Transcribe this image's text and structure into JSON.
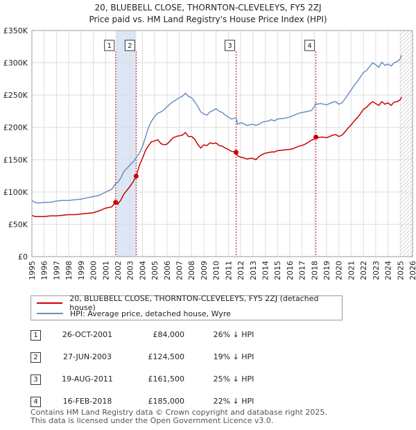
{
  "title": {
    "line1": "20, BLUEBELL CLOSE, THORNTON-CLEVELEYS, FY5 2ZJ",
    "line2": "Price paid vs. HM Land Registry's House Price Index (HPI)"
  },
  "colors": {
    "price_paid": "#cc0000",
    "hpi": "#6a8fc0",
    "sale_band": "#dce6f5",
    "grid": "#dddddd"
  },
  "chart_data": {
    "type": "line",
    "title": "Price paid vs. HM Land Registry's House Price Index (HPI)",
    "xlabel": "",
    "ylabel": "",
    "xlim": [
      1995,
      2026
    ],
    "ylim": [
      0,
      350000
    ],
    "x_ticks": [
      1995,
      1996,
      1997,
      1998,
      1999,
      2000,
      2001,
      2002,
      2003,
      2004,
      2005,
      2006,
      2007,
      2008,
      2009,
      2010,
      2011,
      2012,
      2013,
      2014,
      2015,
      2016,
      2017,
      2018,
      2019,
      2020,
      2021,
      2022,
      2023,
      2024,
      2025,
      2026
    ],
    "y_ticks": [
      0,
      50000,
      100000,
      150000,
      200000,
      250000,
      300000,
      350000
    ],
    "y_tick_labels": [
      "£0",
      "£50K",
      "£100K",
      "£150K",
      "£200K",
      "£250K",
      "£300K",
      "£350K"
    ],
    "grid": true,
    "series": [
      {
        "name": "HPI: Average price, detached house, Wyre",
        "x": [
          1995.0,
          1995.25,
          1995.5,
          1996.0,
          1996.5,
          1997.0,
          1997.5,
          1998.0,
          1998.5,
          1999.0,
          1999.5,
          2000.0,
          2000.5,
          2001.0,
          2001.5,
          2001.82,
          2002.0,
          2002.25,
          2002.5,
          2002.75,
          2003.0,
          2003.25,
          2003.49,
          2003.75,
          2004.0,
          2004.25,
          2004.5,
          2004.75,
          2005.0,
          2005.25,
          2005.5,
          2005.75,
          2006.0,
          2006.25,
          2006.5,
          2006.75,
          2007.0,
          2007.25,
          2007.5,
          2007.75,
          2008.0,
          2008.25,
          2008.5,
          2008.75,
          2009.0,
          2009.25,
          2009.5,
          2009.75,
          2010.0,
          2010.25,
          2010.5,
          2010.75,
          2011.0,
          2011.25,
          2011.63,
          2011.75,
          2012.0,
          2012.25,
          2012.5,
          2012.75,
          2013.0,
          2013.25,
          2013.5,
          2013.75,
          2014.0,
          2014.25,
          2014.5,
          2014.75,
          2015.0,
          2015.5,
          2016.0,
          2016.25,
          2016.5,
          2016.75,
          2017.0,
          2017.25,
          2017.5,
          2017.75,
          2018.0,
          2018.13,
          2018.25,
          2018.5,
          2018.75,
          2019.0,
          2019.25,
          2019.5,
          2019.75,
          2020.0,
          2020.25,
          2020.5,
          2020.75,
          2021.0,
          2021.25,
          2021.5,
          2021.75,
          2022.0,
          2022.25,
          2022.5,
          2022.75,
          2023.0,
          2023.25,
          2023.5,
          2023.75,
          2024.0,
          2024.25,
          2024.5,
          2024.75,
          2025.0,
          2025.1
        ],
        "values": [
          87000,
          84000,
          83000,
          84000,
          84000,
          86000,
          87000,
          87000,
          88000,
          89000,
          91000,
          93000,
          95000,
          100000,
          104000,
          113000,
          115000,
          122000,
          132000,
          137000,
          142000,
          147000,
          153000,
          160000,
          170000,
          185000,
          200000,
          210000,
          217000,
          222000,
          224000,
          227000,
          232000,
          236000,
          240000,
          243000,
          246000,
          248000,
          253000,
          248000,
          246000,
          240000,
          233000,
          224000,
          221000,
          219000,
          224000,
          226000,
          229000,
          225000,
          223000,
          219000,
          216000,
          213000,
          215000,
          205000,
          207000,
          206000,
          203000,
          204000,
          205000,
          203000,
          205000,
          208000,
          209000,
          210000,
          212000,
          210000,
          213000,
          214000,
          216000,
          218000,
          220000,
          222000,
          223000,
          224000,
          225000,
          226000,
          232000,
          237000,
          236000,
          237000,
          236000,
          235000,
          237000,
          239000,
          240000,
          236000,
          238000,
          244000,
          251000,
          258000,
          265000,
          271000,
          278000,
          285000,
          288000,
          294000,
          300000,
          297000,
          293000,
          301000,
          296000,
          298000,
          295000,
          300000,
          302000,
          306000,
          312000
        ]
      },
      {
        "name": "20, BLUEBELL CLOSE, THORNTON-CLEVELEYS, FY5 2ZJ (detached house)",
        "x": [
          1995.0,
          1995.25,
          1995.5,
          1996.0,
          1996.5,
          1997.0,
          1997.5,
          1998.0,
          1998.5,
          1999.0,
          1999.5,
          2000.0,
          2000.5,
          2001.0,
          2001.5,
          2001.82,
          2002.0,
          2002.25,
          2002.5,
          2002.75,
          2003.0,
          2003.25,
          2003.49,
          2003.75,
          2004.0,
          2004.25,
          2004.5,
          2004.75,
          2005.0,
          2005.25,
          2005.5,
          2005.75,
          2006.0,
          2006.25,
          2006.5,
          2006.75,
          2007.0,
          2007.25,
          2007.5,
          2007.75,
          2008.0,
          2008.25,
          2008.5,
          2008.75,
          2009.0,
          2009.25,
          2009.5,
          2009.75,
          2010.0,
          2010.25,
          2010.5,
          2010.75,
          2011.0,
          2011.25,
          2011.63,
          2011.75,
          2012.0,
          2012.25,
          2012.5,
          2012.75,
          2013.0,
          2013.25,
          2013.5,
          2013.75,
          2014.0,
          2014.25,
          2014.5,
          2014.75,
          2015.0,
          2015.5,
          2016.0,
          2016.25,
          2016.5,
          2016.75,
          2017.0,
          2017.25,
          2017.5,
          2017.75,
          2018.0,
          2018.13,
          2018.25,
          2018.5,
          2018.75,
          2019.0,
          2019.25,
          2019.5,
          2019.75,
          2020.0,
          2020.25,
          2020.5,
          2020.75,
          2021.0,
          2021.25,
          2021.5,
          2021.75,
          2022.0,
          2022.25,
          2022.5,
          2022.75,
          2023.0,
          2023.25,
          2023.5,
          2023.75,
          2024.0,
          2024.25,
          2024.5,
          2024.75,
          2025.0,
          2025.1
        ],
        "values": [
          64000,
          62000,
          62000,
          62000,
          63000,
          63000,
          64000,
          65000,
          65000,
          66000,
          67000,
          68000,
          71000,
          75000,
          77000,
          84000,
          81000,
          88000,
          97000,
          103000,
          109000,
          116000,
          124500,
          141000,
          152000,
          164000,
          172000,
          178000,
          179000,
          181000,
          175000,
          173000,
          174000,
          179000,
          184000,
          186000,
          187000,
          188000,
          192000,
          186000,
          186000,
          182000,
          174000,
          168000,
          173000,
          172000,
          176000,
          175000,
          176000,
          172000,
          171000,
          168000,
          166000,
          163000,
          161500,
          156000,
          154000,
          153000,
          151000,
          152000,
          152000,
          150000,
          155000,
          158000,
          160000,
          161000,
          162000,
          162000,
          164000,
          165000,
          166000,
          167000,
          169000,
          171000,
          172000,
          174000,
          177000,
          180000,
          182000,
          185000,
          184000,
          185000,
          185000,
          184000,
          186000,
          188000,
          189000,
          186000,
          188000,
          193000,
          199000,
          204000,
          210000,
          215000,
          221000,
          228000,
          231000,
          236000,
          240000,
          237000,
          234000,
          240000,
          236000,
          238000,
          234000,
          239000,
          240000,
          243000,
          247000
        ]
      }
    ],
    "sales": [
      {
        "label": "1",
        "x": 2001.82,
        "value": 84000
      },
      {
        "label": "2",
        "x": 2003.49,
        "value": 124500
      },
      {
        "label": "3",
        "x": 2011.63,
        "value": 161500
      },
      {
        "label": "4",
        "x": 2018.13,
        "value": 185000
      }
    ],
    "shaded_ranges": [
      [
        2001.82,
        2003.49
      ]
    ],
    "hatched_range": [
      2025.0,
      2026.0
    ]
  },
  "legend": {
    "price_paid_label": "20, BLUEBELL CLOSE, THORNTON-CLEVELEYS, FY5 2ZJ (detached house)",
    "hpi_label": "HPI: Average price, detached house, Wyre"
  },
  "sales_table": [
    {
      "num": "1",
      "date": "26-OCT-2001",
      "price": "£84,000",
      "hpi": "26% ↓ HPI"
    },
    {
      "num": "2",
      "date": "27-JUN-2003",
      "price": "£124,500",
      "hpi": "19% ↓ HPI"
    },
    {
      "num": "3",
      "date": "19-AUG-2011",
      "price": "£161,500",
      "hpi": "25% ↓ HPI"
    },
    {
      "num": "4",
      "date": "16-FEB-2018",
      "price": "£185,000",
      "hpi": "22% ↓ HPI"
    }
  ],
  "footer": {
    "line1": "Contains HM Land Registry data © Crown copyright and database right 2025.",
    "line2": "This data is licensed under the Open Government Licence v3.0."
  }
}
